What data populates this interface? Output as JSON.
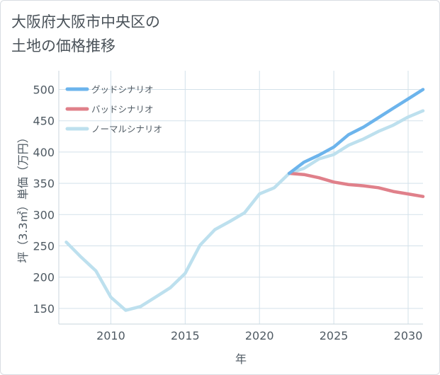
{
  "title": {
    "line1": "大阪府大阪市中央区の",
    "line2": "土地の価格推移"
  },
  "chart_data": {
    "type": "line",
    "xlabel": "年",
    "ylabel": "坪（3.3㎡）単価（万円）",
    "xlim": [
      2006.5,
      2031
    ],
    "ylim": [
      125,
      530
    ],
    "xticks": [
      2010,
      2015,
      2020,
      2025,
      2030
    ],
    "yticks": [
      150,
      200,
      250,
      300,
      350,
      400,
      450,
      500
    ],
    "legend_position": "top-left",
    "series": [
      {
        "name": "グッドシナリオ",
        "color": "#6cb4ec",
        "x": [
          2022,
          2023,
          2024,
          2025,
          2026,
          2027,
          2028,
          2029,
          2030,
          2031
        ],
        "values": [
          366,
          384,
          395,
          408,
          428,
          440,
          455,
          470,
          485,
          500
        ]
      },
      {
        "name": "バッドシナリオ",
        "color": "#e0808a",
        "x": [
          2022,
          2023,
          2024,
          2025,
          2026,
          2027,
          2028,
          2029,
          2030,
          2031
        ],
        "values": [
          366,
          364,
          359,
          352,
          348,
          346,
          343,
          337,
          333,
          329
        ]
      },
      {
        "name": "ノーマルシナリオ",
        "color": "#bde0ee",
        "x": [
          2007,
          2008,
          2009,
          2010,
          2011,
          2012,
          2013,
          2014,
          2015,
          2016,
          2017,
          2018,
          2019,
          2020,
          2021,
          2022,
          2023,
          2024,
          2025,
          2026,
          2027,
          2028,
          2029,
          2030,
          2031
        ],
        "values": [
          256,
          232,
          210,
          168,
          147,
          153,
          168,
          183,
          206,
          251,
          276,
          289,
          303,
          333,
          343,
          366,
          374,
          389,
          396,
          411,
          421,
          433,
          443,
          456,
          466
        ]
      }
    ]
  }
}
